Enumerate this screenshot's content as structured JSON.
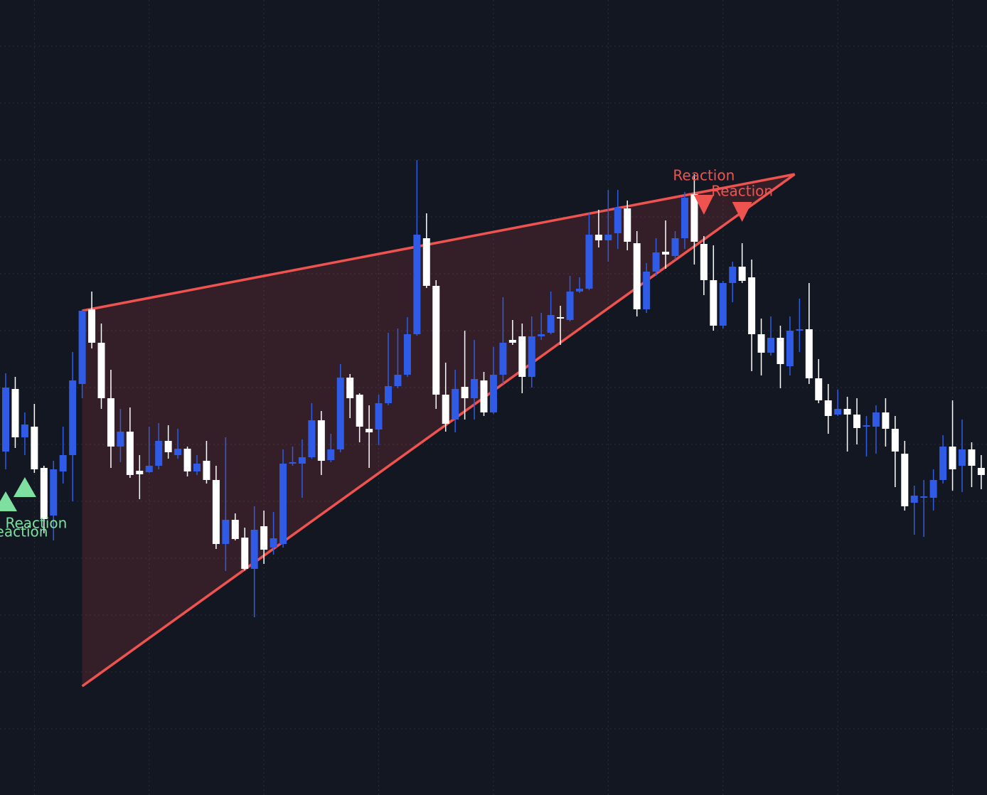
{
  "chart_data": {
    "type": "candlestick",
    "background": "#131722",
    "grid": true,
    "grid_color": "#2a2e39",
    "up_color": "#2f5be6",
    "down_color": "#ffffff",
    "ylim": [
      0,
      1118
    ],
    "yticks": [
      1053,
      973,
      893,
      813,
      733,
      653,
      573,
      493,
      413,
      333,
      253,
      173,
      93
    ],
    "xticks": [
      3,
      15,
      27,
      39,
      51,
      63,
      75,
      87,
      99
    ],
    "open": [
      483,
      571,
      503,
      518,
      460,
      393,
      455,
      478,
      578,
      683,
      636,
      558,
      490,
      511,
      456,
      454,
      463,
      498,
      478,
      487,
      455,
      470,
      443,
      353,
      387,
      362,
      318,
      378,
      348,
      353,
      466,
      466,
      475,
      527,
      471,
      486,
      587,
      563,
      515,
      514,
      551,
      575,
      591,
      648,
      783,
      716,
      563,
      528,
      574,
      558,
      583,
      538,
      591,
      640,
      645,
      588,
      645,
      650,
      672,
      668,
      708,
      712,
      788,
      780,
      790,
      825,
      776,
      683,
      736,
      764,
      758,
      783,
      845,
      775,
      724,
      660,
      720,
      743,
      728,
      648,
      622,
      643,
      603,
      653,
      655,
      586,
      555,
      535,
      543,
      535,
      518,
      518,
      538,
      515,
      480,
      411,
      418,
      418,
      443,
      490,
      463,
      486,
      460
    ],
    "high": [
      593,
      588,
      538,
      550,
      463,
      470,
      518,
      623,
      683,
      708,
      663,
      598,
      543,
      545,
      478,
      518,
      523,
      520,
      515,
      490,
      478,
      498,
      463,
      503,
      396,
      376,
      406,
      400,
      398,
      486,
      490,
      500,
      551,
      540,
      508,
      606,
      592,
      565,
      548,
      563,
      650,
      656,
      672,
      893,
      818,
      724,
      608,
      598,
      653,
      640,
      595,
      630,
      700,
      668,
      663,
      673,
      678,
      708,
      688,
      730,
      728,
      818,
      823,
      851,
      851,
      836,
      793,
      748,
      783,
      808,
      793,
      848,
      873,
      786,
      773,
      723,
      750,
      776,
      753,
      670,
      673,
      660,
      673,
      698,
      720,
      613,
      578,
      570,
      560,
      558,
      533,
      548,
      558,
      533,
      498,
      435,
      443,
      458,
      506,
      555,
      528,
      496,
      478
    ],
    "low": [
      458,
      488,
      478,
      453,
      368,
      358,
      438,
      413,
      558,
      628,
      543,
      460,
      468,
      446,
      416,
      453,
      458,
      473,
      473,
      448,
      450,
      438,
      346,
      315,
      358,
      316,
      250,
      325,
      338,
      348,
      463,
      418,
      473,
      450,
      468,
      482,
      530,
      496,
      460,
      492,
      548,
      572,
      588,
      646,
      713,
      543,
      511,
      510,
      528,
      528,
      533,
      536,
      578,
      633,
      565,
      573,
      640,
      648,
      633,
      666,
      706,
      710,
      770,
      750,
      768,
      766,
      673,
      678,
      730,
      740,
      753,
      768,
      746,
      703,
      653,
      656,
      693,
      720,
      596,
      590,
      618,
      572,
      590,
      623,
      578,
      551,
      508,
      533,
      483,
      493,
      476,
      480,
      490,
      433,
      400,
      366,
      363,
      400,
      438,
      428,
      426,
      433,
      430
    ],
    "close": [
      573,
      503,
      521,
      458,
      388,
      458,
      478,
      583,
      681,
      636,
      558,
      490,
      511,
      450,
      451,
      463,
      498,
      482,
      487,
      455,
      466,
      443,
      353,
      387,
      360,
      318,
      373,
      345,
      361,
      466,
      468,
      475,
      527,
      470,
      486,
      587,
      558,
      518,
      510,
      551,
      575,
      591,
      648,
      788,
      716,
      563,
      522,
      571,
      558,
      585,
      538,
      591,
      636,
      636,
      588,
      645,
      648,
      675,
      670,
      708,
      712,
      788,
      780,
      788,
      826,
      778,
      683,
      736,
      763,
      760,
      783,
      840,
      778,
      724,
      660,
      720,
      743,
      723,
      648,
      622,
      643,
      606,
      653,
      655,
      586,
      555,
      533,
      543,
      535,
      516,
      520,
      538,
      515,
      483,
      406,
      421,
      420,
      443,
      490,
      458,
      486,
      463,
      450
    ],
    "wedge": {
      "color": "#ef5350",
      "fill": "#ef5350",
      "upper": {
        "x": [
          8,
          82.5
        ],
        "y": [
          681,
          873
        ]
      },
      "lower": {
        "x": [
          8,
          82.5
        ],
        "y": [
          153,
          873
        ]
      }
    },
    "annotations": [
      {
        "text": "Reaction",
        "index": 0,
        "direction": "up",
        "color": "#7ee0a0"
      },
      {
        "text": "Reaction",
        "index": 2,
        "direction": "up",
        "color": "#7ee0a0"
      },
      {
        "text": "Reaction",
        "index": 73,
        "direction": "down",
        "color": "#ef5350"
      },
      {
        "text": "Reaction",
        "index": 77,
        "direction": "down",
        "color": "#ef5350"
      }
    ]
  }
}
